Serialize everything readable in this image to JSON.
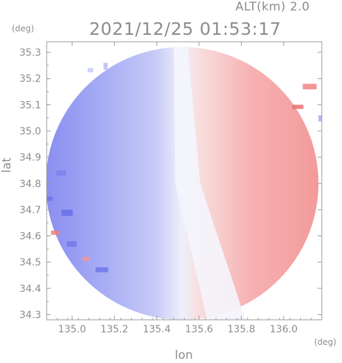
{
  "chart_data": {
    "type": "heatmap",
    "title": "2021/12/25 01:53:17",
    "altitude_label": "ALT(km) 2.0",
    "xlabel": "lon",
    "ylabel": "lat",
    "x_unit": "(deg)",
    "y_unit": "(deg)",
    "xlim": [
      134.88,
      136.18
    ],
    "ylim": [
      34.28,
      35.34
    ],
    "x_ticks": [
      135.0,
      135.2,
      135.4,
      135.6,
      135.8,
      136.0
    ],
    "y_ticks": [
      34.3,
      34.4,
      34.5,
      34.6,
      34.7,
      34.8,
      34.9,
      35.0,
      35.1,
      35.2,
      35.3
    ],
    "x_tick_labels": [
      "135.0",
      "135.2",
      "135.4",
      "135.6",
      "135.8",
      "136.0"
    ],
    "y_tick_labels": [
      "34.3",
      "34.4",
      "34.5",
      "34.6",
      "34.7",
      "34.8",
      "34.9",
      "35.0",
      "35.1",
      "35.2",
      "35.3"
    ],
    "grid": false,
    "colors": {
      "approaching": "#8c90f0",
      "receding": "#f59a9a",
      "neutral": "#ecedf8",
      "axis": "#9a9a9a"
    },
    "radar_center": [
      135.52,
      34.8
    ],
    "radar_radius_lat": 0.52
  }
}
